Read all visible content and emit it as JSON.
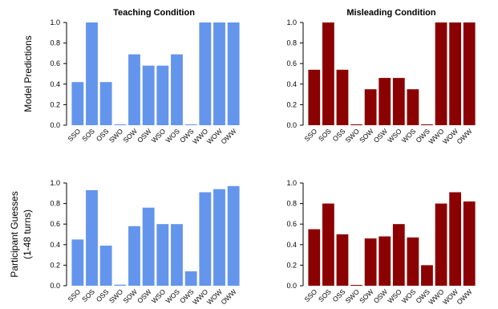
{
  "chart_data": [
    {
      "type": "bar",
      "title": "Teaching Condition",
      "ylabel": "Model Predictions",
      "categories": [
        "SSO",
        "SOS",
        "OSS",
        "SWO",
        "SOW",
        "OSW",
        "WSO",
        "WOS",
        "OWS",
        "WWO",
        "WOW",
        "OWW"
      ],
      "values": [
        0.42,
        1.0,
        0.42,
        0.0,
        0.69,
        0.58,
        0.58,
        0.69,
        0.0,
        1.0,
        1.0,
        1.0
      ],
      "ylim": [
        0,
        1
      ],
      "yticks": [
        "0.0",
        "0.2",
        "0.4",
        "0.6",
        "0.8",
        "1.0"
      ],
      "color": "#6495ED"
    },
    {
      "type": "bar",
      "title": "Misleading Condition",
      "ylabel": "",
      "categories": [
        "SSO",
        "SOS",
        "OSS",
        "SWO",
        "SOW",
        "OSW",
        "WSO",
        "WOS",
        "OWS",
        "WWO",
        "WOW",
        "OWW"
      ],
      "values": [
        0.54,
        1.0,
        0.54,
        0.0,
        0.35,
        0.46,
        0.46,
        0.35,
        0.0,
        1.0,
        1.0,
        1.0
      ],
      "ylim": [
        0,
        1
      ],
      "yticks": [
        "0.0",
        "0.2",
        "0.4",
        "0.6",
        "0.8",
        "1.0"
      ],
      "color": "#8B0000"
    },
    {
      "type": "bar",
      "title": "",
      "ylabel": "Participant Guesses",
      "ylabel2": "(1-48 turns)",
      "categories": [
        "SSO",
        "SOS",
        "OSS",
        "SWO",
        "SOW",
        "OSW",
        "WSO",
        "WOS",
        "OWS",
        "WWO",
        "WOW",
        "OWW"
      ],
      "values": [
        0.45,
        0.93,
        0.39,
        0.01,
        0.58,
        0.76,
        0.6,
        0.6,
        0.14,
        0.91,
        0.94,
        0.97
      ],
      "ylim": [
        0,
        1
      ],
      "yticks": [
        "0.0",
        "0.2",
        "0.4",
        "0.6",
        "0.8",
        "1.0"
      ],
      "color": "#6495ED"
    },
    {
      "type": "bar",
      "title": "",
      "ylabel": "",
      "categories": [
        "SSO",
        "SOS",
        "OSS",
        "SWO",
        "SOW",
        "OSW",
        "WSO",
        "WOS",
        "OWS",
        "WWO",
        "WOW",
        "OWW"
      ],
      "values": [
        0.55,
        0.8,
        0.5,
        0.0,
        0.46,
        0.48,
        0.6,
        0.47,
        0.2,
        0.8,
        0.91,
        0.82
      ],
      "ylim": [
        0,
        1
      ],
      "yticks": [
        "0.0",
        "0.2",
        "0.4",
        "0.6",
        "0.8",
        "1.0"
      ],
      "color": "#8B0000"
    }
  ]
}
